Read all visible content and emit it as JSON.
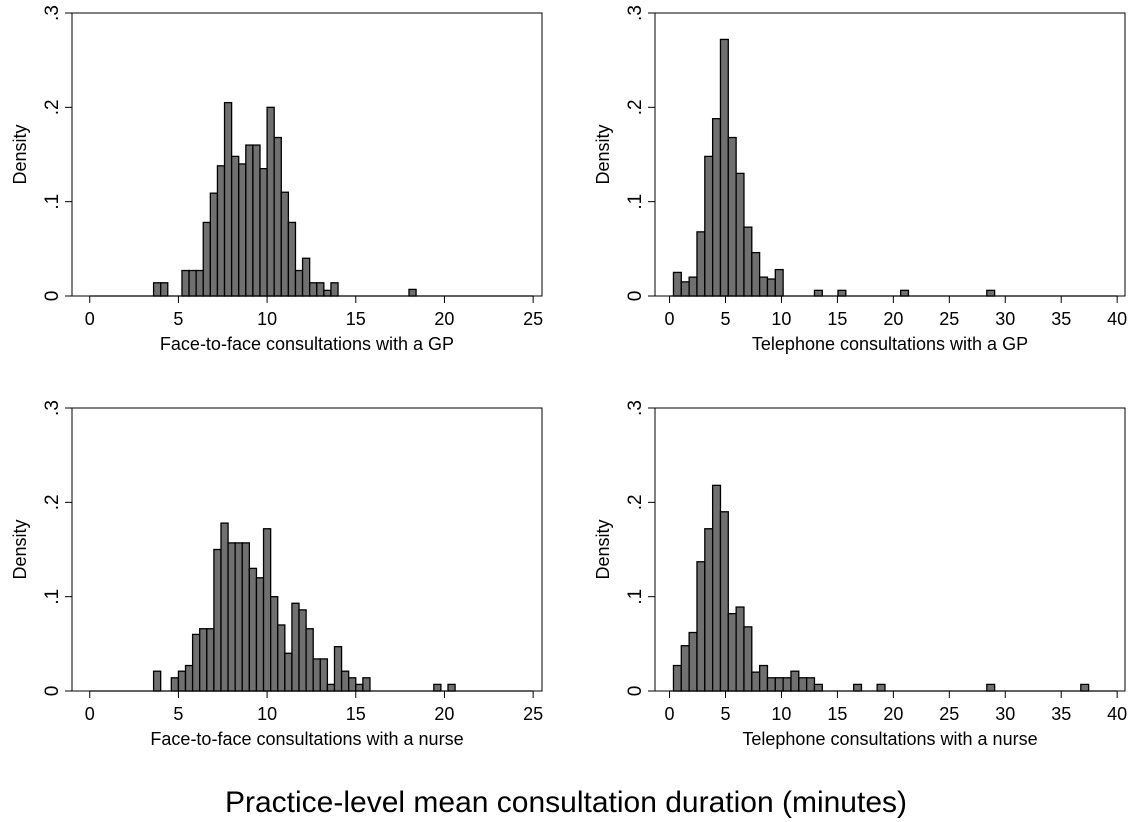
{
  "figure": {
    "supxlabel": "Practice-level mean consultation duration (minutes)"
  },
  "chart_data": [
    {
      "type": "bar",
      "subtype": "histogram",
      "xlabel": "Face-to-face consultations with a GP",
      "ylabel": "Density",
      "xlim": [
        -1,
        25.5
      ],
      "ylim": [
        0,
        0.3
      ],
      "xticks": [
        0,
        5,
        10,
        15,
        20,
        25
      ],
      "yticks": [
        0,
        0.1,
        0.2,
        0.3
      ],
      "ytick_labels": [
        "0",
        ".1",
        ".2",
        ".3"
      ],
      "bin_width": 0.4,
      "bar_color": "#707070",
      "bins": [
        {
          "x": 3.6,
          "y": 0.014
        },
        {
          "x": 4.0,
          "y": 0.014
        },
        {
          "x": 5.2,
          "y": 0.027
        },
        {
          "x": 5.6,
          "y": 0.027
        },
        {
          "x": 6.0,
          "y": 0.027
        },
        {
          "x": 6.4,
          "y": 0.078
        },
        {
          "x": 6.8,
          "y": 0.109
        },
        {
          "x": 7.2,
          "y": 0.138
        },
        {
          "x": 7.6,
          "y": 0.205
        },
        {
          "x": 8.0,
          "y": 0.148
        },
        {
          "x": 8.4,
          "y": 0.14
        },
        {
          "x": 8.8,
          "y": 0.16
        },
        {
          "x": 9.2,
          "y": 0.16
        },
        {
          "x": 9.6,
          "y": 0.135
        },
        {
          "x": 10.0,
          "y": 0.2
        },
        {
          "x": 10.4,
          "y": 0.168
        },
        {
          "x": 10.8,
          "y": 0.11
        },
        {
          "x": 11.2,
          "y": 0.078
        },
        {
          "x": 11.6,
          "y": 0.027
        },
        {
          "x": 12.0,
          "y": 0.04
        },
        {
          "x": 12.4,
          "y": 0.014
        },
        {
          "x": 12.8,
          "y": 0.014
        },
        {
          "x": 13.2,
          "y": 0.006
        },
        {
          "x": 13.6,
          "y": 0.014
        },
        {
          "x": 18.0,
          "y": 0.007
        }
      ]
    },
    {
      "type": "bar",
      "subtype": "histogram",
      "xlabel": "Telephone consultations with a GP",
      "ylabel": "Density",
      "xlim": [
        -1.3,
        40.7
      ],
      "ylim": [
        0,
        0.3
      ],
      "xticks": [
        0,
        5,
        10,
        15,
        20,
        25,
        30,
        35,
        40
      ],
      "yticks": [
        0,
        0.1,
        0.2,
        0.3
      ],
      "ytick_labels": [
        "0",
        ".1",
        ".2",
        ".3"
      ],
      "bin_width": 0.7,
      "bar_color": "#707070",
      "bins": [
        {
          "x": 0.35,
          "y": 0.025
        },
        {
          "x": 1.05,
          "y": 0.015
        },
        {
          "x": 1.75,
          "y": 0.02
        },
        {
          "x": 2.45,
          "y": 0.068
        },
        {
          "x": 3.15,
          "y": 0.148
        },
        {
          "x": 3.85,
          "y": 0.188
        },
        {
          "x": 4.55,
          "y": 0.272
        },
        {
          "x": 5.25,
          "y": 0.168
        },
        {
          "x": 5.95,
          "y": 0.13
        },
        {
          "x": 6.65,
          "y": 0.073
        },
        {
          "x": 7.35,
          "y": 0.046
        },
        {
          "x": 8.05,
          "y": 0.02
        },
        {
          "x": 8.75,
          "y": 0.018
        },
        {
          "x": 9.45,
          "y": 0.028
        },
        {
          "x": 12.95,
          "y": 0.006
        },
        {
          "x": 15.05,
          "y": 0.006
        },
        {
          "x": 20.65,
          "y": 0.006
        },
        {
          "x": 28.35,
          "y": 0.006
        }
      ]
    },
    {
      "type": "bar",
      "subtype": "histogram",
      "xlabel": "Face-to-face consultations with a nurse",
      "ylabel": "Density",
      "xlim": [
        -1,
        25.5
      ],
      "ylim": [
        0,
        0.3
      ],
      "xticks": [
        0,
        5,
        10,
        15,
        20,
        25
      ],
      "yticks": [
        0,
        0.1,
        0.2,
        0.3
      ],
      "ytick_labels": [
        "0",
        ".1",
        ".2",
        ".3"
      ],
      "bin_width": 0.4,
      "bar_color": "#707070",
      "bins": [
        {
          "x": 3.6,
          "y": 0.021
        },
        {
          "x": 4.6,
          "y": 0.014
        },
        {
          "x": 5.0,
          "y": 0.021
        },
        {
          "x": 5.4,
          "y": 0.027
        },
        {
          "x": 5.8,
          "y": 0.06
        },
        {
          "x": 6.2,
          "y": 0.066
        },
        {
          "x": 6.6,
          "y": 0.066
        },
        {
          "x": 7.0,
          "y": 0.15
        },
        {
          "x": 7.4,
          "y": 0.178
        },
        {
          "x": 7.8,
          "y": 0.157
        },
        {
          "x": 8.2,
          "y": 0.157
        },
        {
          "x": 8.6,
          "y": 0.157
        },
        {
          "x": 9.0,
          "y": 0.13
        },
        {
          "x": 9.4,
          "y": 0.12
        },
        {
          "x": 9.8,
          "y": 0.172
        },
        {
          "x": 10.2,
          "y": 0.1
        },
        {
          "x": 10.6,
          "y": 0.07
        },
        {
          "x": 11.0,
          "y": 0.04
        },
        {
          "x": 11.4,
          "y": 0.093
        },
        {
          "x": 11.8,
          "y": 0.086
        },
        {
          "x": 12.2,
          "y": 0.066
        },
        {
          "x": 12.6,
          "y": 0.034
        },
        {
          "x": 13.0,
          "y": 0.034
        },
        {
          "x": 13.4,
          "y": 0.007
        },
        {
          "x": 13.8,
          "y": 0.047
        },
        {
          "x": 14.2,
          "y": 0.021
        },
        {
          "x": 14.6,
          "y": 0.014
        },
        {
          "x": 15.0,
          "y": 0.007
        },
        {
          "x": 15.4,
          "y": 0.014
        },
        {
          "x": 19.4,
          "y": 0.007
        },
        {
          "x": 20.2,
          "y": 0.007
        }
      ]
    },
    {
      "type": "bar",
      "subtype": "histogram",
      "xlabel": "Telephone consultations with a nurse",
      "ylabel": "Density",
      "xlim": [
        -1.3,
        40.7
      ],
      "ylim": [
        0,
        0.3
      ],
      "xticks": [
        0,
        5,
        10,
        15,
        20,
        25,
        30,
        35,
        40
      ],
      "yticks": [
        0,
        0.1,
        0.2,
        0.3
      ],
      "ytick_labels": [
        "0",
        ".1",
        ".2",
        ".3"
      ],
      "bin_width": 0.7,
      "bar_color": "#707070",
      "bins": [
        {
          "x": 0.35,
          "y": 0.027
        },
        {
          "x": 1.05,
          "y": 0.048
        },
        {
          "x": 1.75,
          "y": 0.062
        },
        {
          "x": 2.45,
          "y": 0.137
        },
        {
          "x": 3.15,
          "y": 0.172
        },
        {
          "x": 3.85,
          "y": 0.218
        },
        {
          "x": 4.55,
          "y": 0.19
        },
        {
          "x": 5.25,
          "y": 0.082
        },
        {
          "x": 5.95,
          "y": 0.089
        },
        {
          "x": 6.65,
          "y": 0.068
        },
        {
          "x": 7.35,
          "y": 0.02
        },
        {
          "x": 8.05,
          "y": 0.027
        },
        {
          "x": 8.75,
          "y": 0.014
        },
        {
          "x": 9.45,
          "y": 0.014
        },
        {
          "x": 10.15,
          "y": 0.014
        },
        {
          "x": 10.85,
          "y": 0.021
        },
        {
          "x": 11.55,
          "y": 0.014
        },
        {
          "x": 12.25,
          "y": 0.014
        },
        {
          "x": 12.95,
          "y": 0.007
        },
        {
          "x": 16.45,
          "y": 0.007
        },
        {
          "x": 18.55,
          "y": 0.007
        },
        {
          "x": 28.35,
          "y": 0.007
        },
        {
          "x": 36.75,
          "y": 0.007
        }
      ]
    }
  ]
}
